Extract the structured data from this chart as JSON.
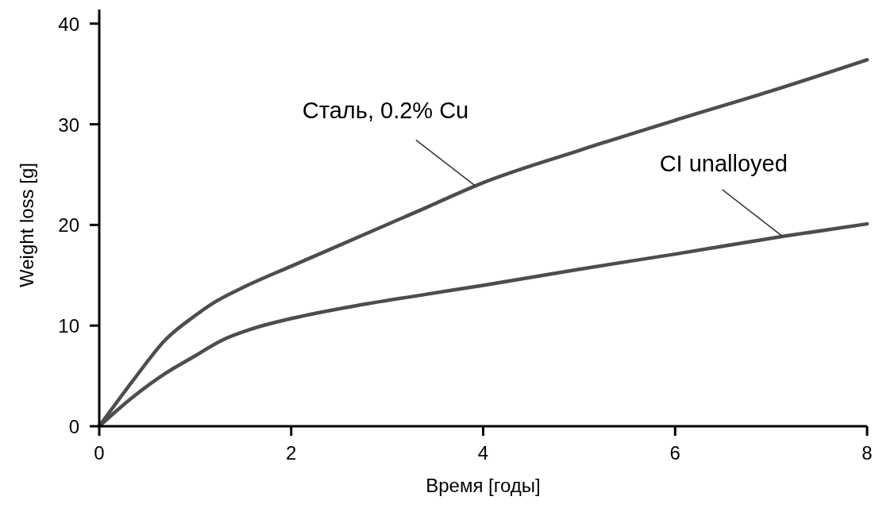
{
  "chart_data": {
    "type": "line",
    "xlabel": "Время [годы]",
    "ylabel": "Weight loss [g]",
    "xlim": [
      0,
      8
    ],
    "ylim": [
      0,
      41.4
    ],
    "xticks": [
      0,
      2,
      4,
      6,
      8
    ],
    "yticks": [
      0,
      10,
      20,
      30,
      40
    ],
    "grid": false,
    "marker": "none",
    "line_style": "solid",
    "series": [
      {
        "name": "Сталь, 0.2% Cu",
        "color": "#4d4d4d",
        "x": [
          0,
          0.38,
          0.68,
          1,
          1.18,
          1.5,
          2,
          2.75,
          3.4,
          4,
          5,
          6,
          7,
          8
        ],
        "values": [
          0,
          4.9,
          8.5,
          11,
          12.2,
          13.8,
          15.9,
          19,
          21.7,
          24.2,
          27.4,
          30.4,
          33.3,
          36.4
        ]
      },
      {
        "name": "CI unalloyed",
        "color": "#4d4d4d",
        "x": [
          0,
          0.35,
          0.68,
          1,
          1.27,
          1.6,
          2,
          2.75,
          3.4,
          4,
          5,
          6,
          7.15,
          8
        ],
        "values": [
          0,
          2.9,
          5.2,
          7,
          8.5,
          9.7,
          10.7,
          12.1,
          13.1,
          14,
          15.6,
          17.1,
          18.9,
          20.1
        ]
      }
    ]
  }
}
